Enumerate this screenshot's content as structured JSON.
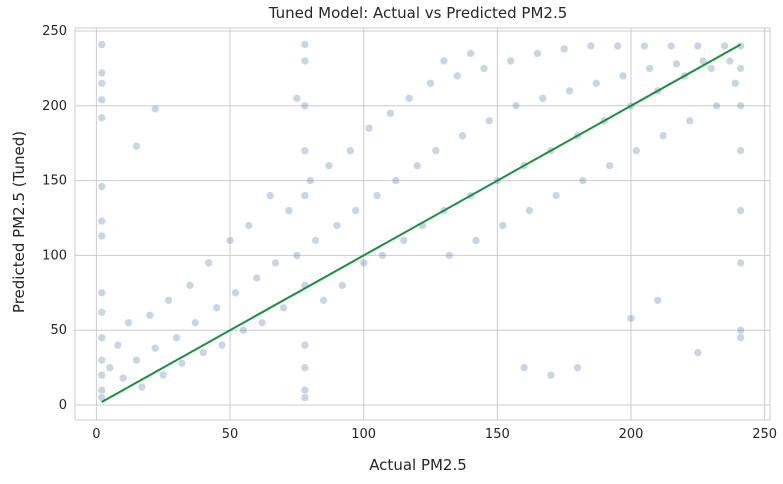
{
  "chart_data": {
    "type": "scatter",
    "title": "Tuned Model: Actual vs Predicted PM2.5",
    "xlabel": "Actual PM2.5",
    "ylabel": "Predicted PM2.5 (Tuned)",
    "xlim": [
      -8,
      252
    ],
    "ylim": [
      -10,
      252
    ],
    "xticks": [
      0,
      50,
      100,
      150,
      200,
      250
    ],
    "yticks": [
      0,
      50,
      100,
      150,
      200,
      250
    ],
    "grid": true,
    "point_color": "#4c72b0",
    "point_opacity": 0.3,
    "reference_line": {
      "x": [
        2,
        241
      ],
      "y": [
        2,
        241
      ],
      "color": "#1a8f3c"
    },
    "series": [
      {
        "points": [
          [
            2,
            241
          ],
          [
            2,
            222
          ],
          [
            2,
            215
          ],
          [
            2,
            204
          ],
          [
            2,
            192
          ],
          [
            2,
            146
          ],
          [
            2,
            123
          ],
          [
            2,
            113
          ],
          [
            2,
            75
          ],
          [
            2,
            62
          ],
          [
            2,
            45
          ],
          [
            2,
            30
          ],
          [
            2,
            20
          ],
          [
            2,
            10
          ],
          [
            2,
            5
          ],
          [
            5,
            25
          ],
          [
            8,
            40
          ],
          [
            10,
            18
          ],
          [
            12,
            55
          ],
          [
            15,
            30
          ],
          [
            17,
            12
          ],
          [
            20,
            60
          ],
          [
            22,
            38
          ],
          [
            25,
            20
          ],
          [
            27,
            70
          ],
          [
            30,
            45
          ],
          [
            32,
            28
          ],
          [
            35,
            80
          ],
          [
            37,
            55
          ],
          [
            40,
            35
          ],
          [
            42,
            95
          ],
          [
            45,
            65
          ],
          [
            47,
            40
          ],
          [
            50,
            110
          ],
          [
            52,
            75
          ],
          [
            55,
            50
          ],
          [
            57,
            120
          ],
          [
            60,
            85
          ],
          [
            62,
            55
          ],
          [
            65,
            140
          ],
          [
            67,
            95
          ],
          [
            70,
            65
          ],
          [
            72,
            130
          ],
          [
            75,
            100
          ],
          [
            78,
            241
          ],
          [
            78,
            230
          ],
          [
            78,
            200
          ],
          [
            78,
            170
          ],
          [
            78,
            140
          ],
          [
            78,
            80
          ],
          [
            78,
            40
          ],
          [
            78,
            25
          ],
          [
            78,
            10
          ],
          [
            78,
            5
          ],
          [
            80,
            150
          ],
          [
            82,
            110
          ],
          [
            85,
            70
          ],
          [
            87,
            160
          ],
          [
            90,
            120
          ],
          [
            92,
            80
          ],
          [
            95,
            170
          ],
          [
            97,
            130
          ],
          [
            100,
            95
          ],
          [
            102,
            185
          ],
          [
            105,
            140
          ],
          [
            107,
            100
          ],
          [
            110,
            195
          ],
          [
            112,
            150
          ],
          [
            115,
            110
          ],
          [
            117,
            205
          ],
          [
            120,
            160
          ],
          [
            122,
            120
          ],
          [
            125,
            215
          ],
          [
            127,
            170
          ],
          [
            130,
            130
          ],
          [
            132,
            100
          ],
          [
            135,
            220
          ],
          [
            137,
            180
          ],
          [
            140,
            140
          ],
          [
            142,
            110
          ],
          [
            145,
            225
          ],
          [
            147,
            190
          ],
          [
            150,
            150
          ],
          [
            152,
            120
          ],
          [
            155,
            230
          ],
          [
            157,
            200
          ],
          [
            160,
            160
          ],
          [
            162,
            130
          ],
          [
            165,
            235
          ],
          [
            167,
            205
          ],
          [
            170,
            170
          ],
          [
            172,
            140
          ],
          [
            175,
            238
          ],
          [
            177,
            210
          ],
          [
            180,
            180
          ],
          [
            182,
            150
          ],
          [
            185,
            240
          ],
          [
            187,
            215
          ],
          [
            190,
            190
          ],
          [
            192,
            160
          ],
          [
            195,
            240
          ],
          [
            197,
            220
          ],
          [
            200,
            200
          ],
          [
            202,
            170
          ],
          [
            205,
            240
          ],
          [
            207,
            225
          ],
          [
            210,
            210
          ],
          [
            212,
            180
          ],
          [
            215,
            240
          ],
          [
            217,
            228
          ],
          [
            220,
            220
          ],
          [
            222,
            190
          ],
          [
            225,
            240
          ],
          [
            227,
            230
          ],
          [
            230,
            225
          ],
          [
            232,
            200
          ],
          [
            235,
            240
          ],
          [
            237,
            230
          ],
          [
            239,
            215
          ],
          [
            241,
            240
          ],
          [
            241,
            225
          ],
          [
            241,
            200
          ],
          [
            241,
            170
          ],
          [
            241,
            130
          ],
          [
            241,
            95
          ],
          [
            241,
            50
          ],
          [
            241,
            45
          ],
          [
            160,
            25
          ],
          [
            180,
            25
          ],
          [
            225,
            35
          ],
          [
            210,
            70
          ],
          [
            200,
            58
          ],
          [
            130,
            230
          ],
          [
            140,
            235
          ],
          [
            75,
            205
          ],
          [
            22,
            198
          ],
          [
            15,
            173
          ],
          [
            170,
            20
          ]
        ]
      }
    ]
  }
}
